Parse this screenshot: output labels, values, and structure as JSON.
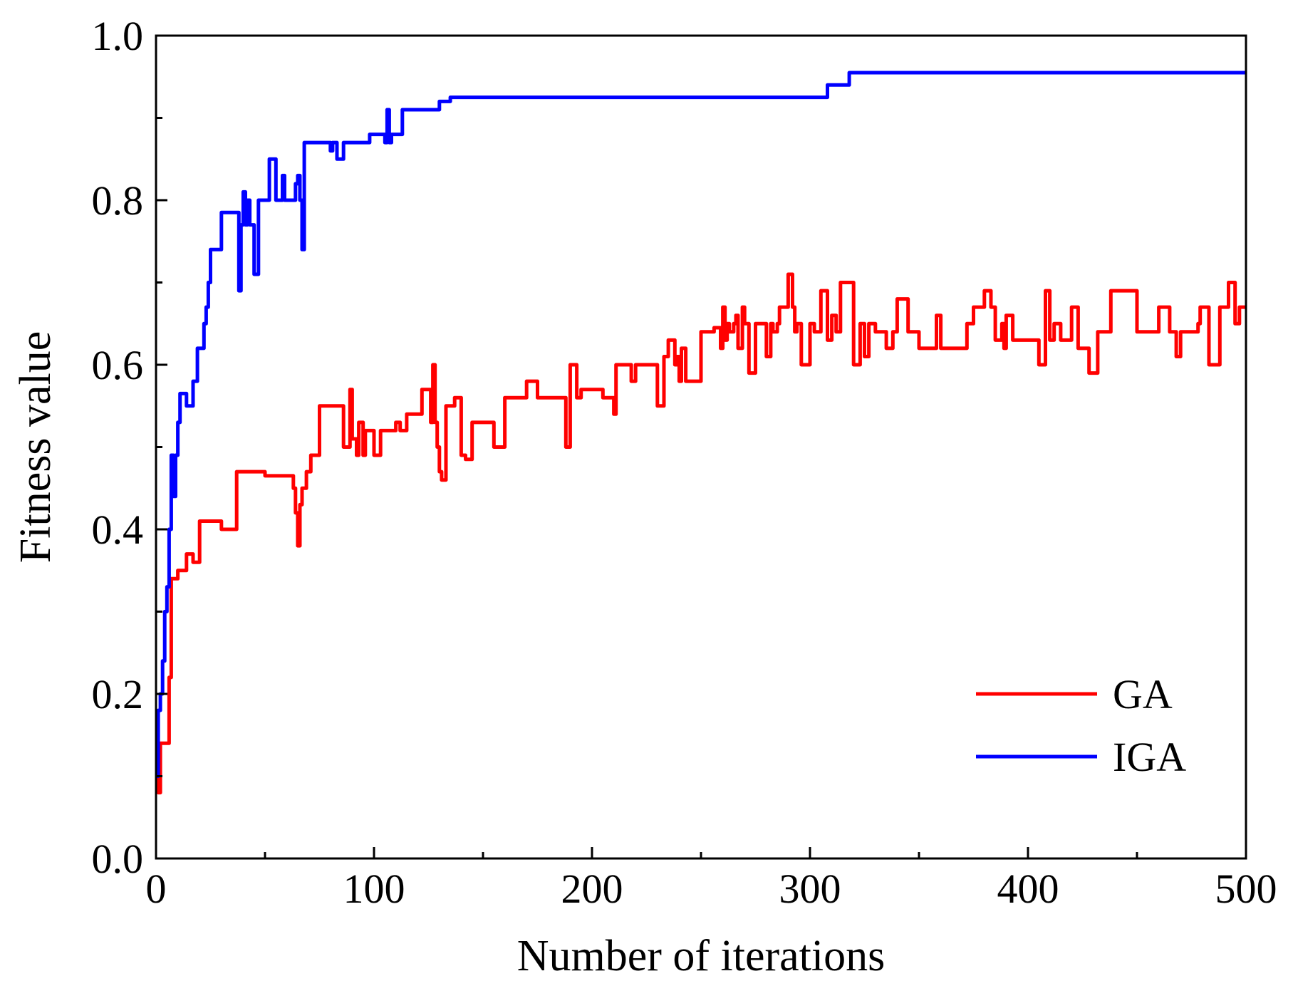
{
  "chart_data": {
    "type": "line",
    "title": "",
    "xlabel": "Number of iterations",
    "ylabel": "Fitness value",
    "xlim": [
      0,
      500
    ],
    "ylim": [
      0.0,
      1.0
    ],
    "xticks": [
      0,
      100,
      200,
      300,
      400,
      500
    ],
    "xtick_labels": [
      "0",
      "100",
      "200",
      "300",
      "400",
      "500"
    ],
    "yticks": [
      0.0,
      0.2,
      0.4,
      0.6,
      0.8,
      1.0
    ],
    "ytick_labels": [
      "0.0",
      "0.2",
      "0.4",
      "0.6",
      "0.8",
      "1.0"
    ],
    "grid": false,
    "legend_position": "bottom-right",
    "series": [
      {
        "name": "GA",
        "color": "#ff0000",
        "x": [
          0,
          1,
          2,
          3,
          5,
          6,
          7,
          8,
          9,
          10,
          12,
          14,
          15,
          17,
          18,
          20,
          22,
          25,
          28,
          30,
          33,
          35,
          37,
          40,
          45,
          50,
          55,
          60,
          62,
          63,
          64,
          65,
          66,
          67,
          68,
          69,
          70,
          71,
          72,
          75,
          80,
          82,
          84,
          86,
          87,
          88,
          89,
          90,
          91,
          92,
          93,
          95,
          96,
          100,
          103,
          105,
          106,
          108,
          110,
          112,
          115,
          118,
          120,
          122,
          124,
          125,
          126,
          127,
          128,
          129,
          130,
          131,
          132,
          133,
          134,
          135,
          137,
          140,
          142,
          145,
          150,
          155,
          160,
          161,
          162,
          165,
          170,
          175,
          180,
          185,
          186,
          187,
          188,
          190,
          191,
          192,
          193,
          195,
          198,
          200,
          205,
          208,
          210,
          211,
          212,
          215,
          218,
          220,
          225,
          230,
          232,
          233,
          235,
          237,
          238,
          239,
          240,
          241,
          242,
          243,
          245,
          248,
          250,
          252,
          255,
          256,
          257,
          258,
          259,
          260,
          261,
          262,
          263,
          265,
          266,
          267,
          268,
          269,
          270,
          272,
          275,
          278,
          280,
          282,
          283,
          284,
          285,
          286,
          288,
          290,
          292,
          293,
          294,
          296,
          298,
          300,
          302,
          305,
          306,
          308,
          310,
          312,
          313,
          314,
          316,
          318,
          320,
          322,
          323,
          325,
          327,
          330,
          333,
          335,
          338,
          340,
          343,
          345,
          347,
          350,
          355,
          358,
          360,
          365,
          370,
          372,
          373,
          375,
          378,
          380,
          383,
          385,
          387,
          388,
          389,
          390,
          393,
          395,
          400,
          403,
          405,
          406,
          408,
          409,
          410,
          412,
          415,
          418,
          420,
          421,
          423,
          425,
          428,
          430,
          432,
          435,
          438,
          440,
          445,
          450,
          455,
          460,
          462,
          463,
          465,
          468,
          470,
          475,
          478,
          479,
          480,
          482,
          483,
          485,
          488,
          490,
          492,
          494,
          495,
          497,
          500
        ],
        "y": [
          0.1,
          0.08,
          0.14,
          0.14,
          0.14,
          0.22,
          0.34,
          0.34,
          0.34,
          0.35,
          0.35,
          0.37,
          0.37,
          0.36,
          0.36,
          0.41,
          0.41,
          0.41,
          0.41,
          0.4,
          0.4,
          0.4,
          0.47,
          0.47,
          0.47,
          0.465,
          0.465,
          0.465,
          0.465,
          0.45,
          0.42,
          0.38,
          0.43,
          0.45,
          0.45,
          0.47,
          0.47,
          0.49,
          0.49,
          0.55,
          0.55,
          0.55,
          0.55,
          0.5,
          0.5,
          0.5,
          0.57,
          0.51,
          0.51,
          0.49,
          0.53,
          0.49,
          0.52,
          0.49,
          0.52,
          0.52,
          0.52,
          0.52,
          0.53,
          0.52,
          0.54,
          0.54,
          0.54,
          0.57,
          0.57,
          0.57,
          0.53,
          0.6,
          0.53,
          0.5,
          0.47,
          0.46,
          0.46,
          0.55,
          0.55,
          0.55,
          0.56,
          0.49,
          0.485,
          0.53,
          0.53,
          0.5,
          0.56,
          0.56,
          0.56,
          0.56,
          0.58,
          0.56,
          0.56,
          0.56,
          0.56,
          0.56,
          0.5,
          0.6,
          0.6,
          0.6,
          0.56,
          0.57,
          0.57,
          0.57,
          0.56,
          0.56,
          0.54,
          0.6,
          0.6,
          0.6,
          0.58,
          0.6,
          0.6,
          0.55,
          0.55,
          0.61,
          0.63,
          0.63,
          0.6,
          0.61,
          0.58,
          0.62,
          0.62,
          0.58,
          0.58,
          0.58,
          0.64,
          0.64,
          0.64,
          0.645,
          0.645,
          0.645,
          0.62,
          0.67,
          0.63,
          0.65,
          0.64,
          0.65,
          0.66,
          0.62,
          0.62,
          0.67,
          0.65,
          0.59,
          0.65,
          0.65,
          0.61,
          0.65,
          0.64,
          0.64,
          0.65,
          0.67,
          0.67,
          0.71,
          0.67,
          0.64,
          0.65,
          0.6,
          0.6,
          0.65,
          0.64,
          0.69,
          0.69,
          0.63,
          0.66,
          0.64,
          0.64,
          0.7,
          0.7,
          0.7,
          0.6,
          0.6,
          0.65,
          0.61,
          0.65,
          0.64,
          0.64,
          0.62,
          0.64,
          0.68,
          0.68,
          0.64,
          0.64,
          0.62,
          0.62,
          0.66,
          0.62,
          0.62,
          0.62,
          0.65,
          0.65,
          0.67,
          0.67,
          0.69,
          0.67,
          0.63,
          0.63,
          0.65,
          0.62,
          0.66,
          0.63,
          0.63,
          0.63,
          0.63,
          0.6,
          0.6,
          0.69,
          0.69,
          0.63,
          0.65,
          0.63,
          0.63,
          0.67,
          0.67,
          0.62,
          0.62,
          0.59,
          0.59,
          0.64,
          0.64,
          0.69,
          0.69,
          0.69,
          0.64,
          0.64,
          0.67,
          0.67,
          0.67,
          0.64,
          0.61,
          0.64,
          0.64,
          0.65,
          0.67,
          0.67,
          0.67,
          0.6,
          0.6,
          0.67,
          0.67,
          0.7,
          0.7,
          0.65,
          0.67,
          0.67
        ]
      },
      {
        "name": "IGA",
        "color": "#0000ff",
        "x": [
          0,
          1,
          2,
          3,
          4,
          5,
          6,
          7,
          8,
          9,
          10,
          11,
          12,
          14,
          15,
          16,
          17,
          18,
          19,
          20,
          21,
          22,
          23,
          24,
          25,
          26,
          28,
          30,
          32,
          35,
          36,
          37,
          38,
          39,
          40,
          41,
          42,
          43,
          45,
          46,
          47,
          48,
          50,
          52,
          53,
          55,
          56,
          57,
          58,
          59,
          60,
          61,
          62,
          64,
          65,
          66,
          67,
          68,
          70,
          72,
          75,
          78,
          80,
          81,
          82,
          83,
          84,
          85,
          86,
          88,
          90,
          92,
          95,
          98,
          100,
          103,
          105,
          106,
          107,
          108,
          109,
          110,
          113,
          115,
          116,
          120,
          125,
          130,
          133,
          135,
          140,
          150,
          200,
          250,
          300,
          305,
          308,
          310,
          315,
          318,
          320,
          400,
          500
        ],
        "y": [
          0.1,
          0.18,
          0.2,
          0.24,
          0.3,
          0.33,
          0.4,
          0.49,
          0.44,
          0.49,
          0.53,
          0.565,
          0.565,
          0.55,
          0.55,
          0.55,
          0.58,
          0.58,
          0.62,
          0.62,
          0.62,
          0.65,
          0.67,
          0.7,
          0.74,
          0.74,
          0.74,
          0.785,
          0.785,
          0.785,
          0.785,
          0.785,
          0.69,
          0.77,
          0.81,
          0.77,
          0.8,
          0.77,
          0.71,
          0.71,
          0.8,
          0.8,
          0.8,
          0.85,
          0.85,
          0.8,
          0.8,
          0.8,
          0.83,
          0.8,
          0.8,
          0.8,
          0.8,
          0.82,
          0.83,
          0.8,
          0.74,
          0.87,
          0.87,
          0.87,
          0.87,
          0.87,
          0.86,
          0.87,
          0.87,
          0.85,
          0.85,
          0.85,
          0.87,
          0.87,
          0.87,
          0.87,
          0.87,
          0.88,
          0.88,
          0.88,
          0.87,
          0.91,
          0.87,
          0.88,
          0.88,
          0.88,
          0.91,
          0.91,
          0.91,
          0.91,
          0.91,
          0.92,
          0.92,
          0.925,
          0.925,
          0.925,
          0.925,
          0.925,
          0.925,
          0.925,
          0.94,
          0.94,
          0.94,
          0.955,
          0.955,
          0.955,
          0.955
        ]
      }
    ]
  }
}
